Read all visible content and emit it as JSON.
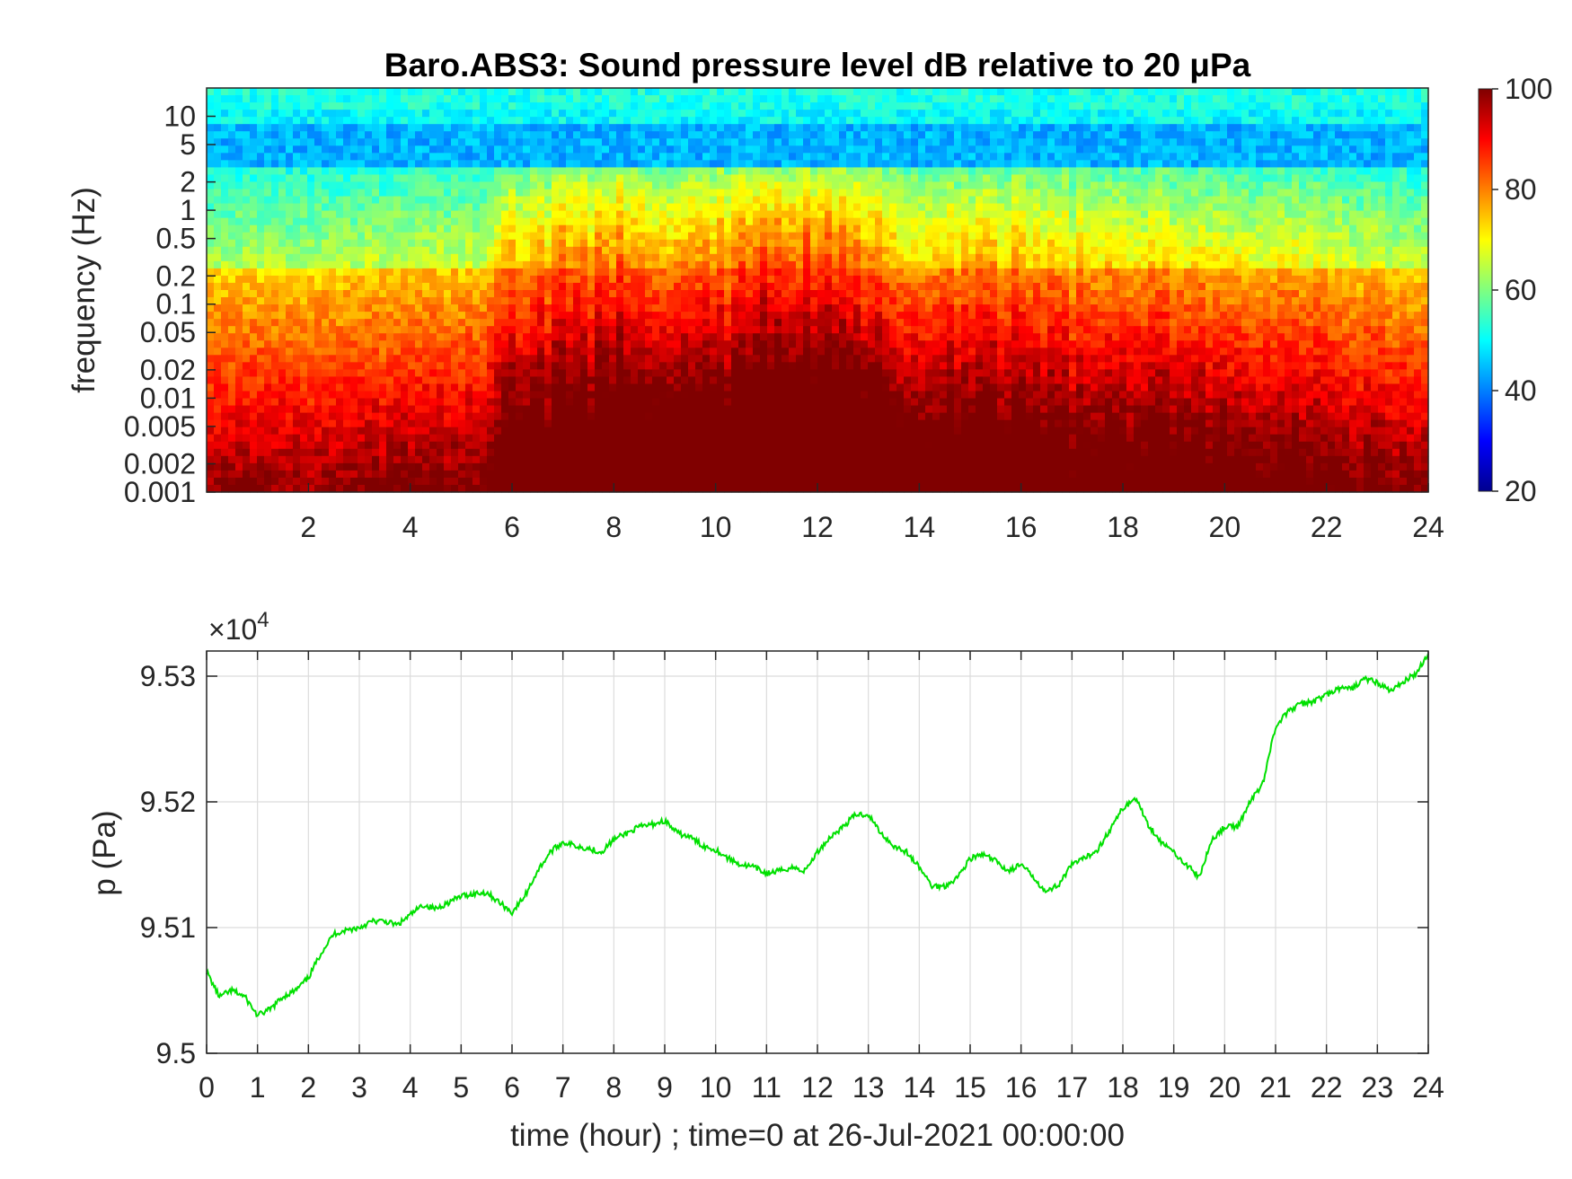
{
  "chart_data": [
    {
      "type": "heatmap",
      "title": "Baro.ABS3: Sound pressure level dB relative to 20 μPa",
      "xlabel": "",
      "ylabel": "frequency (Hz)",
      "xlim": [
        0,
        24
      ],
      "x_ticks": [
        "2",
        "4",
        "6",
        "8",
        "10",
        "12",
        "14",
        "16",
        "18",
        "20",
        "22",
        "24"
      ],
      "y_scale": "log",
      "ylim": [
        0.001,
        20
      ],
      "y_ticks": [
        "0.001",
        "0.002",
        "0.005",
        "0.01",
        "0.02",
        "0.05",
        "0.1",
        "0.2",
        "0.5",
        "1",
        "2",
        "5",
        "10"
      ],
      "colorbar": {
        "range": [
          20,
          100
        ],
        "ticks": [
          "20",
          "40",
          "60",
          "80",
          "100"
        ],
        "colormap": "jet"
      },
      "activity_profile": {
        "hours": [
          0,
          2,
          4,
          5.5,
          6,
          7,
          8,
          9,
          10,
          11,
          12,
          12.8,
          13.5,
          14,
          15,
          16,
          17,
          18,
          19,
          20,
          21,
          22,
          23,
          24
        ],
        "level": [
          0.15,
          0.15,
          0.2,
          0.25,
          0.6,
          0.75,
          0.85,
          0.85,
          0.85,
          0.95,
          1.0,
          0.95,
          0.55,
          0.5,
          0.65,
          0.65,
          0.5,
          0.55,
          0.45,
          0.45,
          0.4,
          0.3,
          0.25,
          0.2
        ]
      },
      "grid": false
    },
    {
      "type": "line",
      "xlabel": "time (hour) ; time=0 at 26-Jul-2021 00:00:00",
      "ylabel": "p (Pa)",
      "y_multiplier": "×10",
      "y_multiplier_exponent": "4",
      "xlim": [
        0,
        24
      ],
      "ylim": [
        9.5,
        9.532
      ],
      "x_ticks": [
        "0",
        "1",
        "2",
        "3",
        "4",
        "5",
        "6",
        "7",
        "8",
        "9",
        "10",
        "11",
        "12",
        "13",
        "14",
        "15",
        "16",
        "17",
        "18",
        "19",
        "20",
        "21",
        "22",
        "23",
        "24"
      ],
      "y_ticks": [
        "9.5",
        "9.51",
        "9.52",
        "9.53"
      ],
      "grid": true,
      "color": "#00e000",
      "series": [
        {
          "x": [
            0,
            0.25,
            0.5,
            0.75,
            1.0,
            1.25,
            1.5,
            1.75,
            2.0,
            2.25,
            2.5,
            2.75,
            3.0,
            3.25,
            3.5,
            3.75,
            4.0,
            4.25,
            4.5,
            4.75,
            5.0,
            5.25,
            5.5,
            5.75,
            6.0,
            6.25,
            6.5,
            6.75,
            7.0,
            7.25,
            7.5,
            7.75,
            8.0,
            8.25,
            8.5,
            8.75,
            9.0,
            9.25,
            9.5,
            9.75,
            10.0,
            10.25,
            10.5,
            10.75,
            11.0,
            11.25,
            11.5,
            11.75,
            12.0,
            12.25,
            12.5,
            12.75,
            13.0,
            13.25,
            13.5,
            13.75,
            14.0,
            14.25,
            14.5,
            14.75,
            15.0,
            15.25,
            15.5,
            15.75,
            16.0,
            16.25,
            16.5,
            16.75,
            17.0,
            17.25,
            17.5,
            17.75,
            18.0,
            18.25,
            18.5,
            18.75,
            19.0,
            19.25,
            19.5,
            19.75,
            20.0,
            20.25,
            20.5,
            20.75,
            21.0,
            21.25,
            21.5,
            21.75,
            22.0,
            22.25,
            22.5,
            22.75,
            23.0,
            23.25,
            23.5,
            23.75,
            24.0
          ],
          "y": [
            9.5065,
            9.5045,
            9.505,
            9.5045,
            9.503,
            9.5035,
            9.5045,
            9.505,
            9.506,
            9.508,
            9.5095,
            9.5098,
            9.51,
            9.5105,
            9.5105,
            9.5102,
            9.511,
            9.5118,
            9.5115,
            9.512,
            9.5125,
            9.5127,
            9.5128,
            9.512,
            9.5112,
            9.5125,
            9.5145,
            9.516,
            9.5168,
            9.5165,
            9.5163,
            9.516,
            9.517,
            9.5175,
            9.518,
            9.5182,
            9.5185,
            9.5175,
            9.5172,
            9.5165,
            9.5162,
            9.5155,
            9.515,
            9.5148,
            9.5143,
            9.5145,
            9.5148,
            9.5145,
            9.516,
            9.5172,
            9.518,
            9.519,
            9.519,
            9.5175,
            9.5165,
            9.516,
            9.5148,
            9.5133,
            9.5133,
            9.514,
            9.5155,
            9.5158,
            9.5153,
            9.5145,
            9.515,
            9.514,
            9.5128,
            9.5135,
            9.515,
            9.5155,
            9.5162,
            9.5178,
            9.5195,
            9.5203,
            9.5182,
            9.5168,
            9.516,
            9.515,
            9.514,
            9.517,
            9.518,
            9.518,
            9.52,
            9.5215,
            9.526,
            9.5272,
            9.5278,
            9.528,
            9.5285,
            9.529,
            9.529,
            9.5298,
            9.5295,
            9.5288,
            9.5295,
            9.5302,
            9.5318
          ]
        }
      ]
    }
  ]
}
